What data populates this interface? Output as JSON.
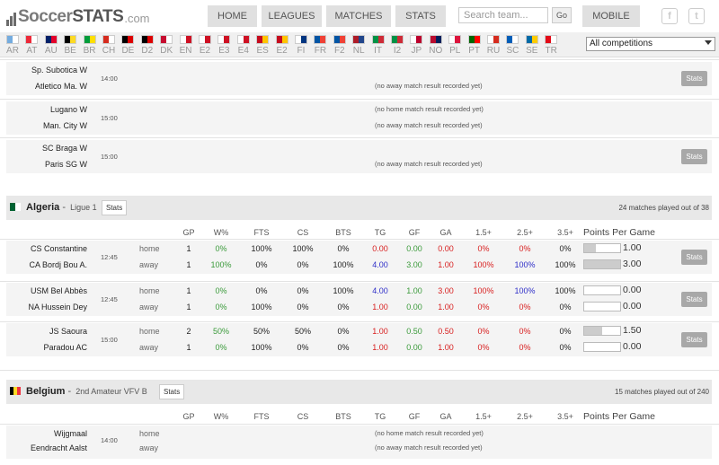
{
  "logo": {
    "soccer": "Soccer",
    "stats": "STATS",
    "dotcom": ".com"
  },
  "nav": [
    {
      "label": "HOME"
    },
    {
      "label": "LEAGUES"
    },
    {
      "label": "MATCHES"
    },
    {
      "label": "STATS"
    },
    {
      "label": "MOBILE"
    }
  ],
  "search": {
    "placeholder": "Search team...",
    "go": "Go"
  },
  "social": {
    "facebook": "f",
    "twitter": "t"
  },
  "flags": [
    {
      "code": "AR",
      "c1": "#74acdf",
      "c2": "#ffffff"
    },
    {
      "code": "AT",
      "c1": "#ed2939",
      "c2": "#ffffff"
    },
    {
      "code": "AU",
      "c1": "#012169",
      "c2": "#e4002b"
    },
    {
      "code": "BE",
      "c1": "#000000",
      "c2": "#fdda24"
    },
    {
      "code": "BR",
      "c1": "#009c3b",
      "c2": "#ffdf00"
    },
    {
      "code": "CH",
      "c1": "#d52b1e",
      "c2": "#ffffff"
    },
    {
      "code": "DE",
      "c1": "#000000",
      "c2": "#dd0000"
    },
    {
      "code": "D2",
      "c1": "#000000",
      "c2": "#dd0000"
    },
    {
      "code": "DK",
      "c1": "#c60c30",
      "c2": "#ffffff"
    },
    {
      "code": "EN",
      "c1": "#ffffff",
      "c2": "#ce1124"
    },
    {
      "code": "E2",
      "c1": "#ffffff",
      "c2": "#ce1124"
    },
    {
      "code": "E3",
      "c1": "#ffffff",
      "c2": "#ce1124"
    },
    {
      "code": "E4",
      "c1": "#ffffff",
      "c2": "#ce1124"
    },
    {
      "code": "ES",
      "c1": "#c60b1e",
      "c2": "#ffc400"
    },
    {
      "code": "E2",
      "c1": "#c60b1e",
      "c2": "#ffc400"
    },
    {
      "code": "FI",
      "c1": "#ffffff",
      "c2": "#003580"
    },
    {
      "code": "FR",
      "c1": "#0055a4",
      "c2": "#ef4135"
    },
    {
      "code": "F2",
      "c1": "#0055a4",
      "c2": "#ef4135"
    },
    {
      "code": "NL",
      "c1": "#ae1c28",
      "c2": "#21468b"
    },
    {
      "code": "IT",
      "c1": "#009246",
      "c2": "#ce2b37"
    },
    {
      "code": "I2",
      "c1": "#009246",
      "c2": "#ce2b37"
    },
    {
      "code": "JP",
      "c1": "#ffffff",
      "c2": "#bc002d"
    },
    {
      "code": "NO",
      "c1": "#ba0c2f",
      "c2": "#00205b"
    },
    {
      "code": "PL",
      "c1": "#ffffff",
      "c2": "#dc143c"
    },
    {
      "code": "PT",
      "c1": "#006600",
      "c2": "#ff0000"
    },
    {
      "code": "RU",
      "c1": "#ffffff",
      "c2": "#d52b1e"
    },
    {
      "code": "SC",
      "c1": "#005eb8",
      "c2": "#ffffff"
    },
    {
      "code": "SE",
      "c1": "#006aa7",
      "c2": "#fecc00"
    },
    {
      "code": "TR",
      "c1": "#e30a17",
      "c2": "#ffffff"
    }
  ],
  "competition_select": {
    "value": "All competitions"
  },
  "top_matches": [
    {
      "home": "Sp. Subotica W",
      "away": "Atletico Ma. W",
      "time": "14:00",
      "home_note": "",
      "away_note": "(no away match result recorded yet)",
      "stats": "Stats",
      "has_stats": true
    },
    {
      "home": "Lugano W",
      "away": "Man. City W",
      "time": "15:00",
      "home_note": "(no home match result recorded yet)",
      "away_note": "(no away match result recorded yet)",
      "stats": "",
      "has_stats": false
    },
    {
      "home": "SC Braga W",
      "away": "Paris SG W",
      "time": "15:00",
      "home_note": "",
      "away_note": "(no away match result recorded yet)",
      "stats": "Stats",
      "has_stats": true
    }
  ],
  "columns": {
    "gp": "GP",
    "wp": "W%",
    "fts": "FTS",
    "cs": "CS",
    "bts": "BTS",
    "tg": "TG",
    "gf": "GF",
    "ga": "GA",
    "o15": "1.5+",
    "o25": "2.5+",
    "o35": "3.5+",
    "ppg": "Points Per Game"
  },
  "algeria": {
    "name": "Algeria",
    "league": "Ligue 1",
    "stats": "Stats",
    "played": "24 matches played out of 38",
    "flag_c1": "#006233",
    "flag_c2": "#ffffff",
    "matches": [
      {
        "time": "12:45",
        "stats": "Stats",
        "rows": [
          {
            "team": "CS Constantine",
            "loc": "home",
            "gp": "1",
            "wp": "0%",
            "fts": "100%",
            "cs": "100%",
            "bts": "0%",
            "tg": "0.00",
            "gf": "0.00",
            "ga": "0.00",
            "o15": "0%",
            "o25": "0%",
            "o35": "0%",
            "ppg": "1.00",
            "ppg_frac": 0.33
          },
          {
            "team": "CA Bordj Bou A.",
            "loc": "away",
            "gp": "1",
            "wp": "100%",
            "fts": "0%",
            "cs": "0%",
            "bts": "100%",
            "tg": "4.00",
            "gf": "3.00",
            "ga": "1.00",
            "o15": "100%",
            "o25": "100%",
            "o35": "100%",
            "ppg": "3.00",
            "ppg_frac": 1.0
          }
        ]
      },
      {
        "time": "12:45",
        "stats": "Stats",
        "rows": [
          {
            "team": "USM Bel Abbès",
            "loc": "home",
            "gp": "1",
            "wp": "0%",
            "fts": "0%",
            "cs": "0%",
            "bts": "100%",
            "tg": "4.00",
            "gf": "1.00",
            "ga": "3.00",
            "o15": "100%",
            "o25": "100%",
            "o35": "100%",
            "ppg": "0.00",
            "ppg_frac": 0.0
          },
          {
            "team": "NA Hussein Dey",
            "loc": "away",
            "gp": "1",
            "wp": "0%",
            "fts": "100%",
            "cs": "0%",
            "bts": "0%",
            "tg": "1.00",
            "gf": "0.00",
            "ga": "1.00",
            "o15": "0%",
            "o25": "0%",
            "o35": "0%",
            "ppg": "0.00",
            "ppg_frac": 0.0
          }
        ]
      },
      {
        "time": "15:00",
        "stats": "Stats",
        "rows": [
          {
            "team": "JS Saoura",
            "loc": "home",
            "gp": "2",
            "wp": "50%",
            "fts": "50%",
            "cs": "50%",
            "bts": "0%",
            "tg": "1.00",
            "gf": "0.50",
            "ga": "0.50",
            "o15": "0%",
            "o25": "0%",
            "o35": "0%",
            "ppg": "1.50",
            "ppg_frac": 0.5
          },
          {
            "team": "Paradou AC",
            "loc": "away",
            "gp": "1",
            "wp": "0%",
            "fts": "100%",
            "cs": "0%",
            "bts": "0%",
            "tg": "1.00",
            "gf": "0.00",
            "ga": "1.00",
            "o15": "0%",
            "o25": "0%",
            "o35": "0%",
            "ppg": "0.00",
            "ppg_frac": 0.0
          }
        ]
      }
    ]
  },
  "belgium": {
    "name": "Belgium",
    "league": "2nd Amateur VFV B",
    "stats": "Stats",
    "played": "15 matches played out of 240",
    "match": {
      "home": "Wijgmaal",
      "away": "Eendracht Aalst",
      "time": "14:00",
      "loc_home": "home",
      "loc_away": "away",
      "home_note": "(no home match result recorded yet)",
      "away_note": "(no away match result recorded yet)"
    }
  },
  "colors": {
    "green": "#3a9a3a",
    "red": "#d81e1e",
    "blue": "#2e2ec8",
    "button_grey": "#a8a8a8",
    "header_grey": "#e8e8e8"
  }
}
